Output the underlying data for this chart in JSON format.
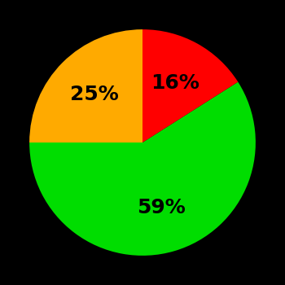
{
  "slices": [
    59,
    16,
    25
  ],
  "colors": [
    "#00dd00",
    "#ff0000",
    "#ffaa00"
  ],
  "labels": [
    "59%",
    "16%",
    "25%"
  ],
  "background_color": "#000000",
  "text_color": "#000000",
  "font_size": 18,
  "font_weight": "bold",
  "startangle": 180
}
